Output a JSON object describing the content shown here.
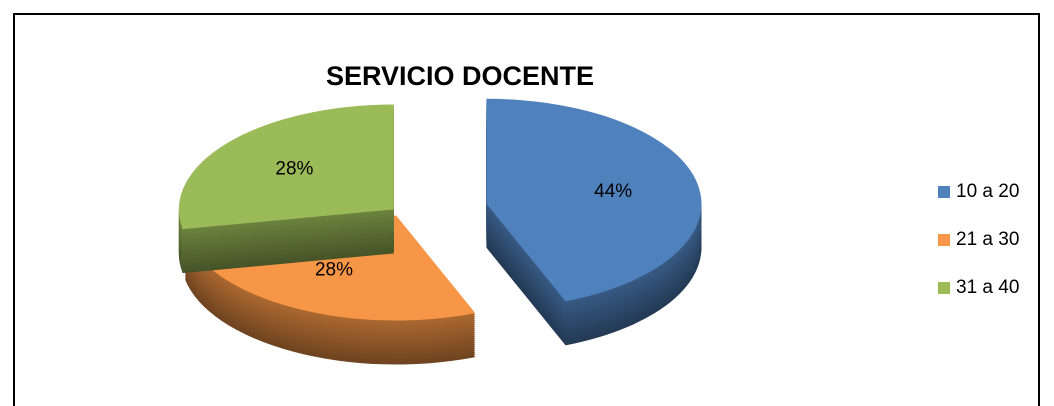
{
  "chart_data": {
    "type": "pie",
    "title": "SERVICIO DOCENTE",
    "categories": [
      "10 a 20",
      "21 a 30",
      "31 a 40"
    ],
    "values": [
      44,
      28,
      28
    ],
    "value_labels": [
      "44%",
      "28%",
      "28%"
    ],
    "colors": [
      "#4f81bd",
      "#f79646",
      "#9bbb59"
    ],
    "legend": "right"
  }
}
